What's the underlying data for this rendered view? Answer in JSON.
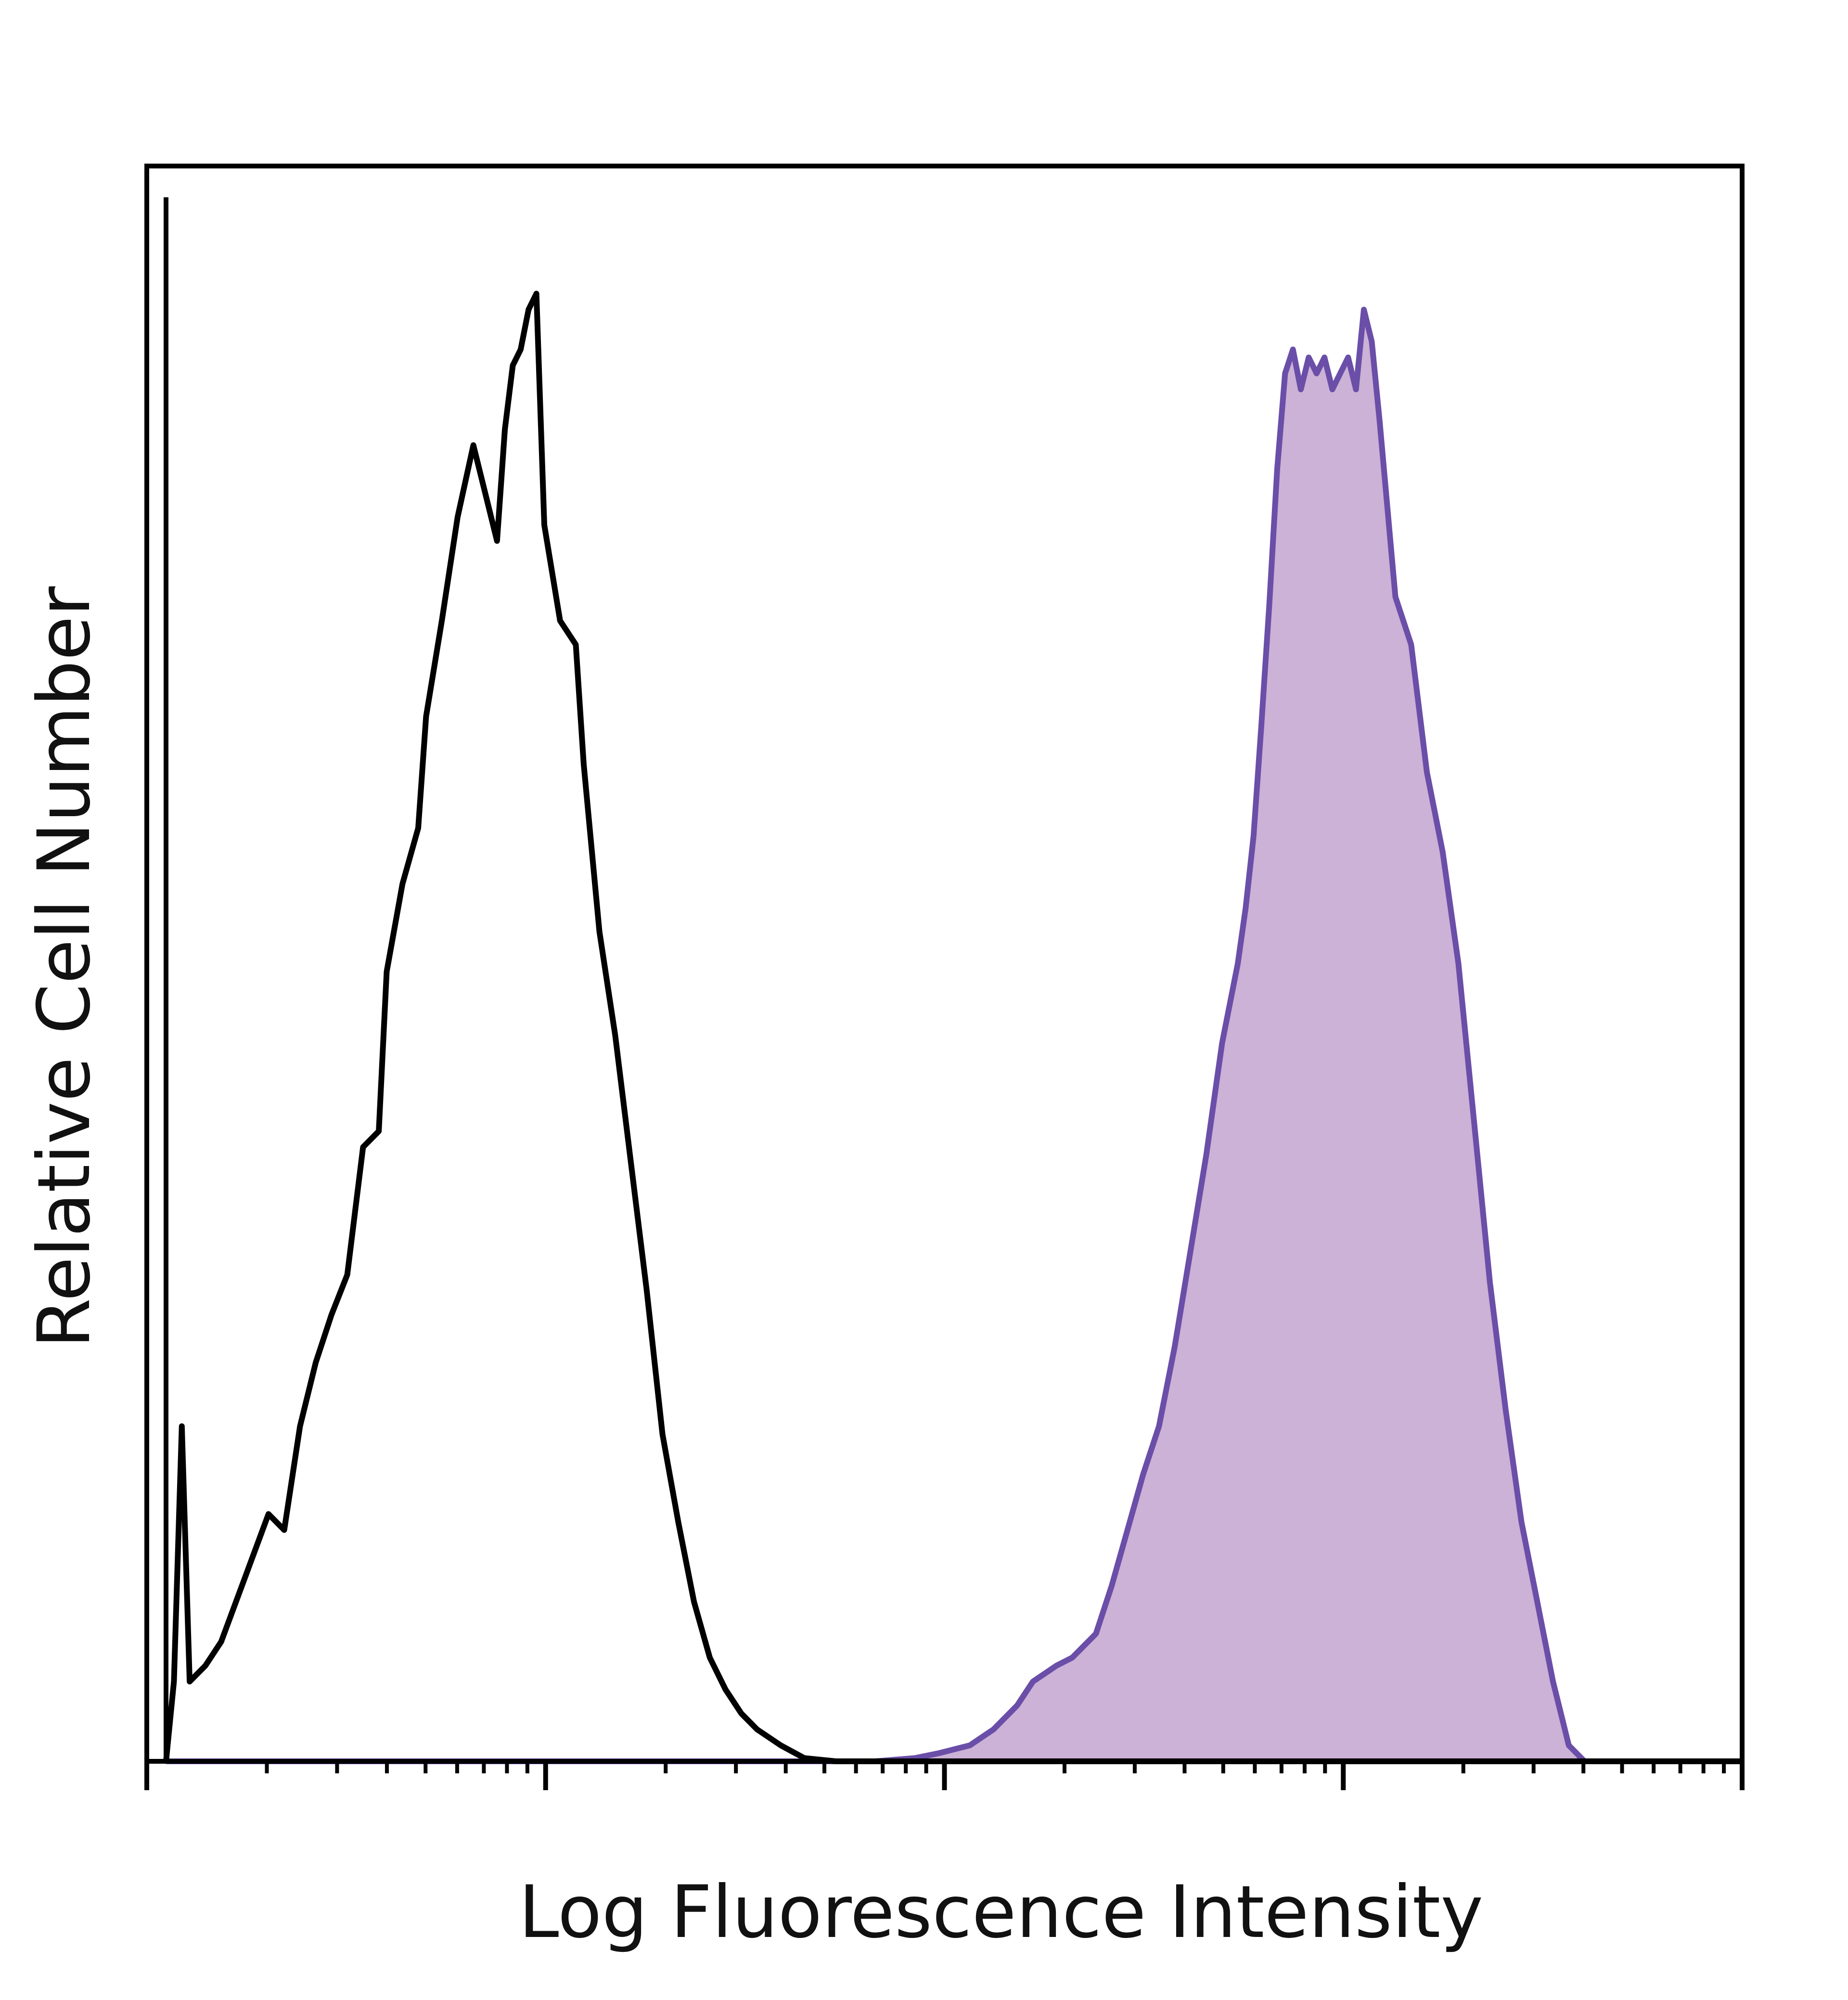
{
  "chart_data": {
    "type": "area",
    "title": "",
    "xlabel": "Log Fluorescence Intensity",
    "ylabel": "Relative Cell Number",
    "x_scale": "log",
    "xlim": [
      0,
      4
    ],
    "ylim": [
      0,
      100
    ],
    "x_major_ticks": [
      0,
      1,
      2,
      3,
      4
    ],
    "tick_labels_shown": false,
    "grid": false,
    "legend": "none",
    "series": [
      {
        "style": "outline",
        "color": "#000000",
        "x": [
          0.0,
          0.02,
          0.04,
          0.06,
          0.08,
          0.1,
          0.14,
          0.2,
          0.26,
          0.3,
          0.34,
          0.38,
          0.42,
          0.46,
          0.5,
          0.54,
          0.56,
          0.6,
          0.64,
          0.66,
          0.7,
          0.74,
          0.78,
          0.8,
          0.84,
          0.86,
          0.88,
          0.9,
          0.92,
          0.94,
          0.96,
          1.0,
          1.04,
          1.06,
          1.1,
          1.14,
          1.18,
          1.22,
          1.26,
          1.3,
          1.34,
          1.38,
          1.42,
          1.46,
          1.5,
          1.56,
          1.62,
          1.7,
          1.8,
          2.0,
          2.5,
          3.0,
          3.5,
          4.0
        ],
        "y": [
          0.0,
          5.0,
          21.0,
          5.0,
          5.5,
          6.0,
          7.5,
          11.5,
          15.5,
          14.5,
          21.0,
          25.0,
          28.0,
          30.5,
          38.5,
          39.5,
          49.5,
          55.0,
          58.5,
          65.5,
          71.5,
          78.0,
          82.5,
          80.5,
          76.5,
          83.5,
          87.5,
          88.5,
          91.0,
          92.0,
          77.5,
          71.5,
          70.0,
          62.5,
          52.0,
          45.5,
          37.5,
          29.5,
          20.5,
          15.0,
          10.0,
          6.5,
          4.5,
          3.0,
          2.0,
          1.0,
          0.2,
          0.0,
          0.0,
          0.0,
          0.0,
          0.0,
          0.0,
          0.0
        ]
      },
      {
        "style": "filled",
        "color": "#6a4ea8",
        "fill": "#cbb2d6",
        "x": [
          0.0,
          1.5,
          1.8,
          1.9,
          1.96,
          2.04,
          2.1,
          2.16,
          2.2,
          2.26,
          2.3,
          2.36,
          2.4,
          2.44,
          2.48,
          2.52,
          2.56,
          2.6,
          2.64,
          2.68,
          2.72,
          2.74,
          2.76,
          2.78,
          2.8,
          2.82,
          2.84,
          2.86,
          2.88,
          2.9,
          2.92,
          2.94,
          2.96,
          2.98,
          3.0,
          3.02,
          3.04,
          3.06,
          3.08,
          3.12,
          3.16,
          3.2,
          3.24,
          3.28,
          3.32,
          3.36,
          3.4,
          3.44,
          3.48,
          3.52,
          3.56,
          3.6,
          3.7,
          3.8,
          4.0
        ],
        "y": [
          0.0,
          0.0,
          0.0,
          0.2,
          0.5,
          1.0,
          2.0,
          3.5,
          5.0,
          6.0,
          6.5,
          8.0,
          11.0,
          14.5,
          18.0,
          21.0,
          26.0,
          32.0,
          38.0,
          45.0,
          50.0,
          53.5,
          58.0,
          65.0,
          72.5,
          81.0,
          87.0,
          88.5,
          86.0,
          88.0,
          87.0,
          88.0,
          86.0,
          87.0,
          88.0,
          86.0,
          91.0,
          89.0,
          84.0,
          73.0,
          70.0,
          62.0,
          57.0,
          50.0,
          40.0,
          30.0,
          22.0,
          15.0,
          10.0,
          5.0,
          1.0,
          0.0,
          0.0,
          0.0,
          0.0
        ]
      }
    ]
  }
}
